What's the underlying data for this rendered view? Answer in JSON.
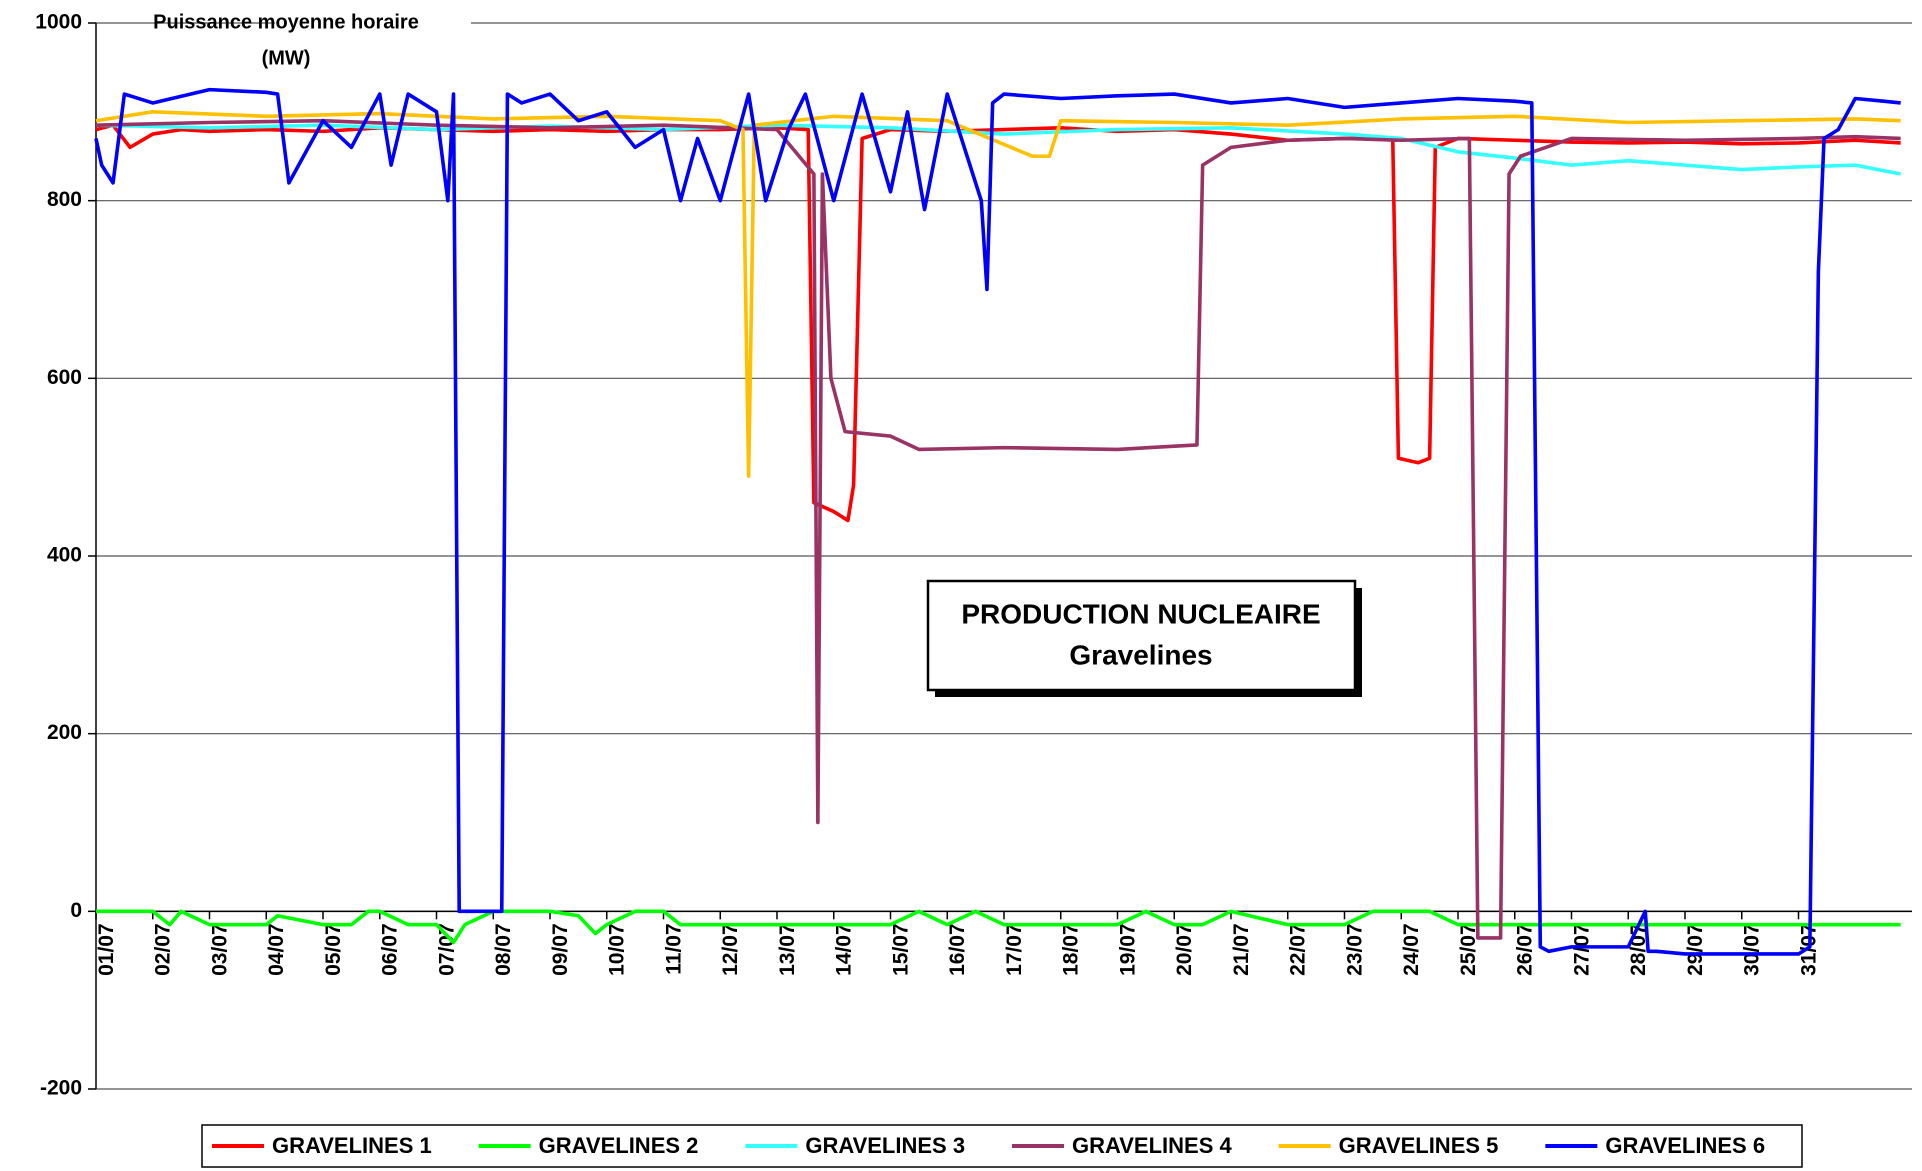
{
  "chart_data": {
    "type": "line",
    "title": "PRODUCTION NUCLEAIRE",
    "subtitle": "Gravelines",
    "ylabel": [
      "Puissance moyenne horaire",
      "(MW)"
    ],
    "xlim": [
      0,
      32
    ],
    "xticks": [
      {
        "value": 0,
        "label": "01/07"
      },
      {
        "value": 1,
        "label": "02/07"
      },
      {
        "value": 2,
        "label": "03/07"
      },
      {
        "value": 3,
        "label": "04/07"
      },
      {
        "value": 4,
        "label": "05/07"
      },
      {
        "value": 5,
        "label": "06/07"
      },
      {
        "value": 6,
        "label": "07/07"
      },
      {
        "value": 7,
        "label": "08/07"
      },
      {
        "value": 8,
        "label": "09/07"
      },
      {
        "value": 9,
        "label": "10/07"
      },
      {
        "value": 10,
        "label": "11/07"
      },
      {
        "value": 11,
        "label": "12/07"
      },
      {
        "value": 12,
        "label": "13/07"
      },
      {
        "value": 13,
        "label": "14/07"
      },
      {
        "value": 14,
        "label": "15/07"
      },
      {
        "value": 15,
        "label": "16/07"
      },
      {
        "value": 16,
        "label": "17/07"
      },
      {
        "value": 17,
        "label": "18/07"
      },
      {
        "value": 18,
        "label": "19/07"
      },
      {
        "value": 19,
        "label": "20/07"
      },
      {
        "value": 20,
        "label": "21/07"
      },
      {
        "value": 21,
        "label": "22/07"
      },
      {
        "value": 22,
        "label": "23/07"
      },
      {
        "value": 23,
        "label": "24/07"
      },
      {
        "value": 24,
        "label": "25/07"
      },
      {
        "value": 25,
        "label": "26/07"
      },
      {
        "value": 26,
        "label": "27/07"
      },
      {
        "value": 27,
        "label": "28/07"
      },
      {
        "value": 28,
        "label": "29/07"
      },
      {
        "value": 29,
        "label": "30/07"
      },
      {
        "value": 30,
        "label": "31/07"
      }
    ],
    "ylim": [
      -200,
      1000
    ],
    "yticks": [
      -200,
      0,
      200,
      400,
      600,
      800,
      1000
    ],
    "grid": true,
    "legend": "bottom",
    "series": [
      {
        "name": "GRAVELINES 1",
        "color": "#ff0000",
        "x": [
          0,
          0.3,
          0.6,
          1,
          1.5,
          2,
          3,
          4,
          5,
          6,
          7,
          8,
          9,
          10,
          11,
          12,
          12.55,
          12.65,
          13,
          13.25,
          13.35,
          13.5,
          14,
          15,
          16,
          17,
          18,
          19,
          20,
          21,
          22,
          22.85,
          22.95,
          23.3,
          23.5,
          23.6,
          24,
          25,
          26,
          27,
          28,
          29,
          30,
          31,
          31.8
        ],
        "values": [
          880,
          885,
          860,
          875,
          880,
          878,
          880,
          878,
          882,
          880,
          878,
          880,
          878,
          880,
          880,
          882,
          880,
          460,
          450,
          440,
          480,
          870,
          880,
          878,
          880,
          882,
          878,
          880,
          875,
          868,
          870,
          870,
          510,
          505,
          510,
          860,
          870,
          868,
          866,
          865,
          866,
          864,
          865,
          868,
          865
        ]
      },
      {
        "name": "GRAVELINES 2",
        "color": "#00ff00",
        "x": [
          0,
          1,
          1.3,
          1.5,
          2,
          3,
          3.2,
          4,
          4.5,
          4.8,
          5,
          5.5,
          6,
          6.3,
          6.5,
          7,
          7.3,
          8,
          8.5,
          8.8,
          9,
          9.5,
          10,
          10.3,
          11,
          12,
          13,
          14,
          14.5,
          15,
          15.5,
          16,
          17,
          18,
          18.5,
          19,
          19.5,
          20,
          21,
          22,
          22.5,
          23,
          23.5,
          24,
          25,
          26,
          27,
          28,
          29,
          30,
          31,
          31.8
        ],
        "values": [
          0,
          0,
          -15,
          0,
          -15,
          -15,
          -5,
          -15,
          -15,
          0,
          0,
          -15,
          -15,
          -35,
          -15,
          0,
          0,
          0,
          -5,
          -25,
          -15,
          0,
          0,
          -15,
          -15,
          -15,
          -15,
          -15,
          0,
          -15,
          0,
          -15,
          -15,
          -15,
          0,
          -15,
          -15,
          0,
          -15,
          -15,
          0,
          0,
          0,
          -15,
          -15,
          -15,
          -15,
          -15,
          -15,
          -15,
          -15,
          -15
        ]
      },
      {
        "name": "GRAVELINES 3",
        "color": "#33ffff",
        "x": [
          0,
          2,
          4,
          6,
          8,
          10,
          12,
          14,
          16,
          18,
          20,
          22,
          23,
          24,
          25,
          26,
          27,
          28,
          29,
          30,
          31,
          31.8
        ],
        "values": [
          885,
          882,
          885,
          880,
          884,
          880,
          885,
          882,
          875,
          880,
          882,
          875,
          870,
          855,
          848,
          840,
          845,
          840,
          835,
          838,
          840,
          830
        ]
      },
      {
        "name": "GRAVELINES 4",
        "color": "#993366",
        "x": [
          0,
          2,
          4,
          6,
          8,
          10,
          12,
          12.65,
          12.72,
          12.8,
          12.95,
          13.2,
          14,
          14.5,
          16,
          18,
          19.4,
          19.5,
          20,
          21,
          22,
          23,
          24.2,
          24.35,
          24.75,
          24.9,
          25.1,
          26,
          28,
          30,
          31,
          31.8
        ],
        "values": [
          885,
          888,
          890,
          885,
          882,
          885,
          880,
          830,
          100,
          830,
          600,
          540,
          535,
          520,
          522,
          520,
          525,
          840,
          860,
          868,
          870,
          868,
          870,
          -30,
          -30,
          830,
          850,
          870,
          868,
          870,
          872,
          870
        ]
      },
      {
        "name": "GRAVELINES 5",
        "color": "#ffc000",
        "x": [
          0,
          1,
          3,
          5,
          7,
          9,
          11,
          11.4,
          11.5,
          11.6,
          13,
          15,
          16.5,
          16.8,
          17,
          19,
          21,
          23,
          25,
          27,
          29,
          31,
          31.8
        ],
        "values": [
          890,
          900,
          895,
          898,
          892,
          895,
          890,
          880,
          490,
          885,
          895,
          890,
          850,
          850,
          890,
          888,
          885,
          892,
          895,
          888,
          890,
          892,
          890
        ]
      },
      {
        "name": "GRAVELINES 6",
        "color": "#0000ff",
        "x": [
          0,
          0.1,
          0.3,
          0.5,
          1,
          2,
          3,
          3.2,
          3.4,
          4,
          4.5,
          5,
          5.2,
          5.5,
          6,
          6.2,
          6.3,
          6.4,
          7.15,
          7.25,
          7.5,
          8,
          8.5,
          9,
          9.5,
          10,
          10.3,
          10.6,
          11,
          11.5,
          11.8,
          12.2,
          12.5,
          13,
          13.5,
          14,
          14.3,
          14.6,
          15,
          15.6,
          15.7,
          15.8,
          16,
          17,
          18,
          19,
          20,
          21,
          22,
          23,
          24,
          25,
          25.3,
          25.45,
          25.6,
          26,
          27,
          27.3,
          27.35,
          27.5,
          28,
          29,
          30,
          30.2,
          30.35,
          30.45,
          30.7,
          31,
          31.5,
          31.8
        ],
        "values": [
          870,
          840,
          820,
          920,
          910,
          925,
          922,
          920,
          820,
          890,
          860,
          920,
          840,
          920,
          900,
          800,
          920,
          0,
          0,
          920,
          910,
          920,
          890,
          900,
          860,
          880,
          800,
          870,
          800,
          920,
          800,
          880,
          920,
          800,
          920,
          810,
          900,
          790,
          920,
          800,
          700,
          910,
          920,
          915,
          918,
          920,
          910,
          915,
          905,
          910,
          915,
          912,
          910,
          -40,
          -45,
          -40,
          -40,
          0,
          -45,
          -45,
          -48,
          -48,
          -48,
          -40,
          720,
          870,
          880,
          915,
          912,
          910
        ]
      }
    ]
  }
}
